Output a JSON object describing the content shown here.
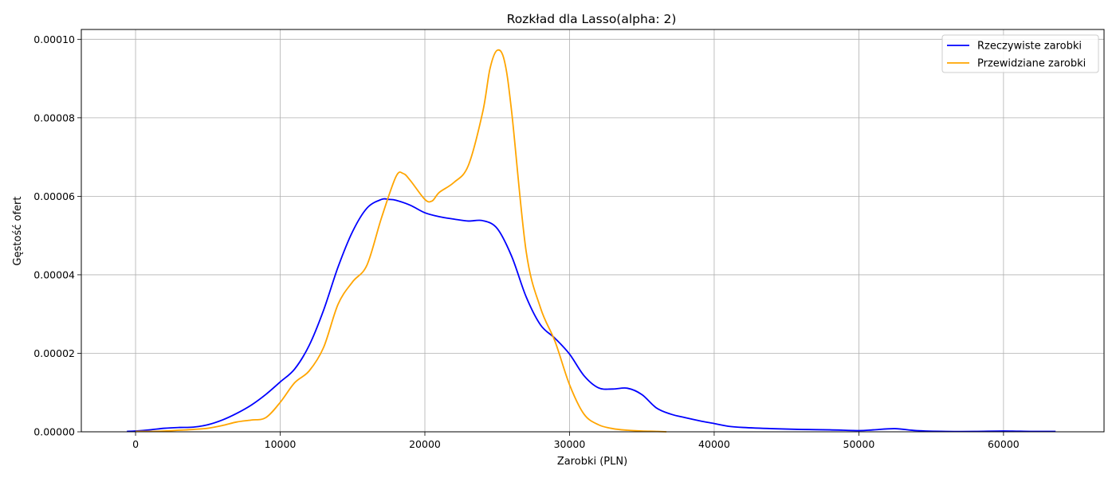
{
  "chart_data": {
    "type": "line",
    "title": "Rozkład dla Lasso(alpha: 2)",
    "xlabel": "Zarobki (PLN)",
    "ylabel": "Gęstość ofert",
    "xlim": [
      -3750,
      66950
    ],
    "ylim": [
      0,
      0.0001025
    ],
    "x_ticks": [
      0,
      10000,
      20000,
      30000,
      40000,
      50000,
      60000
    ],
    "x_tick_labels": [
      "0",
      "10000",
      "20000",
      "30000",
      "40000",
      "50000",
      "60000"
    ],
    "y_ticks": [
      0,
      2e-05,
      4e-05,
      6e-05,
      8e-05,
      0.0001
    ],
    "y_tick_labels": [
      "0.00000",
      "0.00002",
      "0.00004",
      "0.00006",
      "0.00008",
      "0.00010"
    ],
    "grid": true,
    "legend": "top-right",
    "series": [
      {
        "name": "Rzeczywiste zarobki",
        "color": "#0000ff",
        "x": [
          -600,
          0,
          1000,
          2000,
          3000,
          4000,
          5000,
          6000,
          7000,
          8000,
          9000,
          10000,
          11000,
          12000,
          13000,
          14000,
          15000,
          16000,
          17000,
          17500,
          18000,
          19000,
          20000,
          21000,
          22000,
          23000,
          24000,
          25000,
          26000,
          27000,
          28000,
          29000,
          30000,
          31000,
          32000,
          33000,
          34000,
          35000,
          36000,
          37000,
          38000,
          39000,
          40000,
          41000,
          42000,
          44000,
          46000,
          48000,
          50000,
          51000,
          52500,
          54000,
          56000,
          58000,
          60000,
          62000,
          63600
        ],
        "y": [
          1e-07,
          2e-07,
          5e-07,
          9e-07,
          1.1e-06,
          1.2e-06,
          1.8e-06,
          3e-06,
          4.7e-06,
          6.8e-06,
          9.5e-06,
          1.27e-05,
          1.6e-05,
          2.2e-05,
          3.1e-05,
          4.2e-05,
          5.1e-05,
          5.7e-05,
          5.92e-05,
          5.92e-05,
          5.9e-05,
          5.77e-05,
          5.58e-05,
          5.48e-05,
          5.42e-05,
          5.37e-05,
          5.38e-05,
          5.18e-05,
          4.47e-05,
          3.44e-05,
          2.72e-05,
          2.38e-05,
          1.98e-05,
          1.43e-05,
          1.12e-05,
          1.09e-05,
          1.11e-05,
          9.5e-06,
          6.1e-06,
          4.5e-06,
          3.6e-06,
          2.8e-06,
          2.1e-06,
          1.4e-06,
          1.1e-06,
          8e-07,
          6e-07,
          5e-07,
          3e-07,
          5e-07,
          8e-07,
          3e-07,
          1e-07,
          1e-07,
          2e-07,
          1e-07,
          1e-07
        ]
      },
      {
        "name": "Przewidziane zarobki",
        "color": "#ffa500",
        "x": [
          0,
          1000,
          2000,
          3000,
          4000,
          5000,
          6000,
          7000,
          8000,
          9000,
          10000,
          11000,
          12000,
          13000,
          14000,
          15000,
          16000,
          17000,
          18000,
          18500,
          19000,
          20000,
          20500,
          21000,
          22000,
          23000,
          24000,
          24500,
          25000,
          25500,
          26000,
          27000,
          28000,
          29000,
          30000,
          31000,
          32000,
          33000,
          34000,
          35000,
          36000,
          36700
        ],
        "y": [
          1e-07,
          1e-07,
          2e-07,
          4e-07,
          6e-07,
          9e-07,
          1.6e-06,
          2.5e-06,
          3e-06,
          3.6e-06,
          7.5e-06,
          1.25e-05,
          1.55e-05,
          2.15e-05,
          3.25e-05,
          3.82e-05,
          4.25e-05,
          5.45e-05,
          6.5e-05,
          6.58e-05,
          6.4e-05,
          5.92e-05,
          5.88e-05,
          6.1e-05,
          6.35e-05,
          6.78e-05,
          8.15e-05,
          9.25e-05,
          9.72e-05,
          9.45e-05,
          8.15e-05,
          4.6e-05,
          3.15e-05,
          2.3e-05,
          1.2e-05,
          4.5e-06,
          1.8e-06,
          8e-07,
          4e-07,
          2e-07,
          1e-07,
          0.0
        ]
      }
    ]
  }
}
